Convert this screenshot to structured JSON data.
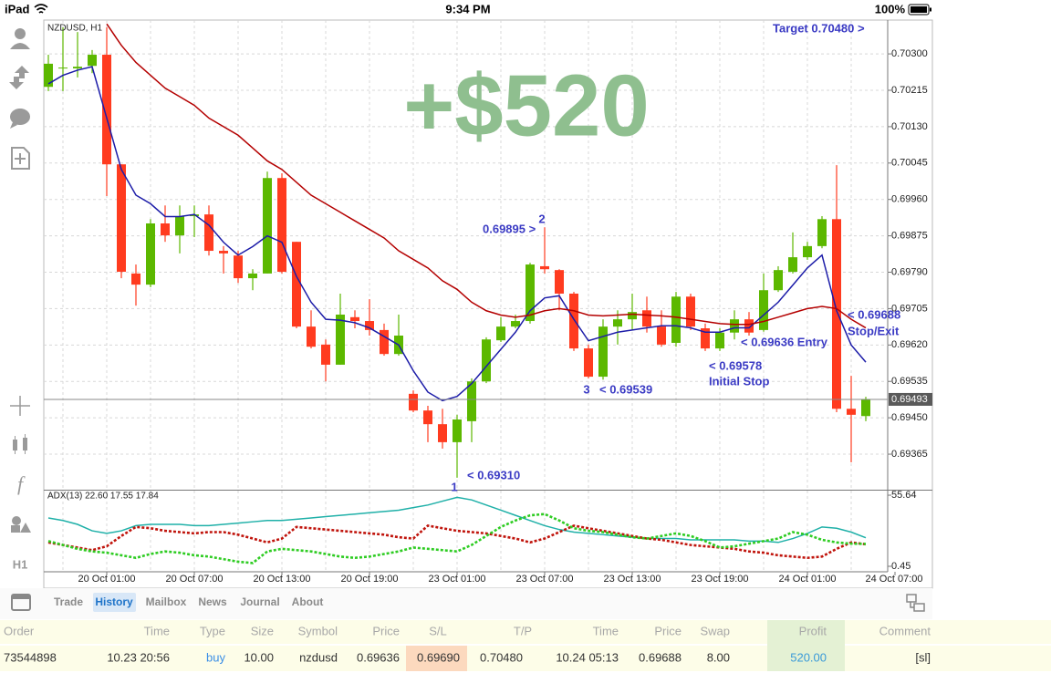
{
  "status_bar": {
    "device": "iPad",
    "time": "9:34 PM",
    "battery": "100%"
  },
  "sidebar": {
    "timeframe": "H1"
  },
  "chart_data": [
    {
      "type": "candlestick",
      "title": "NZDUSD, H1",
      "up_color": "#5cb800",
      "down_color": "#ff3b1f",
      "open": [
        0.70223,
        0.70266,
        0.70266,
        0.70272,
        0.70298,
        0.70042,
        0.69787,
        0.69761,
        0.69904,
        0.69876,
        0.69921,
        0.69925,
        0.6984,
        0.69829,
        0.69776,
        0.69787,
        0.7001,
        0.69861,
        0.69663,
        0.69621,
        0.69574,
        0.69685,
        0.69676,
        0.69655,
        0.69599,
        0.69506,
        0.69467,
        0.69435,
        0.69393,
        0.69442,
        0.69535,
        0.69631,
        0.69663,
        0.69676,
        0.69804,
        0.69795,
        0.6974,
        0.69612,
        0.69546,
        0.69663,
        0.6968,
        0.69701,
        0.69663,
        0.69625,
        0.69733,
        0.69659,
        0.69612,
        0.69649,
        0.6968,
        0.69655,
        0.69748,
        0.69791,
        0.69825,
        0.69851,
        0.69914,
        0.69471,
        0.69454,
        null,
        null
      ],
      "high": [
        0.70298,
        0.70362,
        0.70351,
        0.70309,
        0.70362,
        0.70042,
        0.69808,
        0.69914,
        0.69946,
        0.69946,
        0.69946,
        0.69946,
        0.69851,
        0.6984,
        0.69797,
        0.70025,
        0.70021,
        0.69861,
        0.69701,
        0.69633,
        0.6974,
        0.69701,
        0.69727,
        0.6967,
        0.69691,
        0.69514,
        0.69478,
        0.69471,
        0.69457,
        0.69542,
        0.69638,
        0.69685,
        0.69691,
        0.69812,
        0.69895,
        0.69797,
        0.69744,
        0.69621,
        0.6968,
        0.69701,
        0.6974,
        0.69733,
        0.69701,
        0.69744,
        0.6974,
        0.6967,
        0.69659,
        0.69701,
        0.69697,
        0.69787,
        0.69804,
        0.69883,
        0.69861,
        0.69921,
        0.7004,
        0.69548,
        0.69499,
        null,
        null
      ],
      "low": [
        0.70213,
        0.70213,
        0.70245,
        0.70255,
        0.69968,
        0.69776,
        0.69712,
        0.69755,
        0.69861,
        0.69834,
        0.69872,
        0.69829,
        0.69787,
        0.69765,
        0.69748,
        0.69787,
        0.69787,
        0.69659,
        0.69612,
        0.69535,
        0.69574,
        0.69659,
        0.69642,
        0.69595,
        0.69595,
        0.69463,
        0.69393,
        0.69378,
        0.6931,
        0.69393,
        0.69531,
        0.69627,
        0.69659,
        0.6967,
        0.69787,
        0.69701,
        0.69606,
        0.69542,
        0.69539,
        0.69621,
        0.69655,
        0.69649,
        0.69616,
        0.69616,
        0.69655,
        0.69606,
        0.69606,
        0.69633,
        0.69642,
        0.69651,
        0.69744,
        0.69787,
        0.69819,
        0.69846,
        0.69463,
        0.69346,
        0.69442,
        null,
        null
      ],
      "close": [
        0.70277,
        0.70268,
        0.7027,
        0.70298,
        0.70042,
        0.69791,
        0.69761,
        0.69904,
        0.69876,
        0.69921,
        0.69925,
        0.6984,
        0.69834,
        0.69776,
        0.69787,
        0.7001,
        0.69791,
        0.69663,
        0.69616,
        0.69574,
        0.69691,
        0.69676,
        0.69655,
        0.69599,
        0.69642,
        0.69467,
        0.69435,
        0.69393,
        0.69446,
        0.69535,
        0.69633,
        0.69663,
        0.69676,
        0.69808,
        0.69797,
        0.6974,
        0.69612,
        0.69546,
        0.69663,
        0.6968,
        0.69697,
        0.69663,
        0.69621,
        0.69733,
        0.69663,
        0.69612,
        0.69649,
        0.6968,
        0.69649,
        0.69748,
        0.69795,
        0.69825,
        0.69851,
        0.69914,
        0.69471,
        0.69457,
        0.69493,
        null,
        null
      ],
      "overlays": [
        {
          "color": "#1c1ca8",
          "values": [
            0.7023,
            0.7025,
            0.70262,
            0.7027,
            0.7015,
            0.7003,
            0.6997,
            0.6995,
            0.6992,
            0.6992,
            0.69925,
            0.699,
            0.6986,
            0.6983,
            0.6985,
            0.69875,
            0.6986,
            0.6978,
            0.6972,
            0.6968,
            0.69678,
            0.69672,
            0.6966,
            0.6964,
            0.6962,
            0.6956,
            0.6951,
            0.6949,
            0.695,
            0.6953,
            0.6957,
            0.6961,
            0.6965,
            0.697,
            0.6973,
            0.69735,
            0.6968,
            0.6963,
            0.6964,
            0.6965,
            0.69655,
            0.6966,
            0.69665,
            0.69665,
            0.6966,
            0.6965,
            0.6965,
            0.6966,
            0.6966,
            0.6969,
            0.6972,
            0.6976,
            0.698,
            0.6983,
            0.697,
            0.6962,
            0.6958,
            null,
            null
          ]
        },
        {
          "color": "#b40000",
          "values": [
            null,
            null,
            null,
            null,
            0.7037,
            0.7032,
            0.7028,
            0.7025,
            0.7022,
            0.702,
            0.7018,
            0.7015,
            0.7013,
            0.7011,
            0.7008,
            0.7005,
            0.7003,
            0.7,
            0.6997,
            0.6995,
            0.6993,
            0.6991,
            0.6989,
            0.6987,
            0.6984,
            0.6982,
            0.698,
            0.6977,
            0.6975,
            0.6972,
            0.697,
            0.6969,
            0.69685,
            0.6969,
            0.697,
            0.69705,
            0.697,
            0.6969,
            0.69688,
            0.6969,
            0.69692,
            0.6969,
            0.69688,
            0.69685,
            0.6968,
            0.69675,
            0.6967,
            0.69668,
            0.69668,
            0.69675,
            0.69685,
            0.69695,
            0.69705,
            0.6971,
            0.69705,
            0.6968,
            0.6966,
            null,
            null
          ]
        }
      ],
      "ylim": [
        0.69282,
        0.70379
      ],
      "yticks": [
        {
          "value": 0.703,
          "label": "0.70300"
        },
        {
          "value": 0.70215,
          "label": "0.70215"
        },
        {
          "value": 0.7013,
          "label": "0.70130"
        },
        {
          "value": 0.70045,
          "label": "0.70045"
        },
        {
          "value": 0.6996,
          "label": "0.69960"
        },
        {
          "value": 0.69875,
          "label": "0.69875"
        },
        {
          "value": 0.6979,
          "label": "0.69790"
        },
        {
          "value": 0.69705,
          "label": "0.69705"
        },
        {
          "value": 0.6962,
          "label": "0.69620"
        },
        {
          "value": 0.69535,
          "label": "0.69535"
        },
        {
          "value": 0.6945,
          "label": "0.69450"
        },
        {
          "value": 0.69365,
          "label": "0.69365"
        }
      ],
      "current_price": {
        "value": 0.69493,
        "label": "0.69493"
      },
      "grid": true,
      "profit_banner": "+$520",
      "annotations": [
        "Target 0.70480 >",
        "0.69895 >",
        "2",
        "< 0.69310",
        "1",
        "3",
        "< 0.69539",
        "< 0.69578",
        "Initial Stop",
        "< 0.69636 Entry",
        "< 0.69688",
        "Stop/Exit"
      ]
    },
    {
      "type": "line",
      "title": "ADX(13) 22.60 17.55 17.84",
      "categories": [
        null,
        null,
        null,
        null,
        "20 Oct 01:00",
        null,
        null,
        null,
        null,
        null,
        "20 Oct 07:00",
        null,
        null,
        null,
        null,
        null,
        "20 Oct 13:00",
        null,
        null,
        null,
        null,
        null,
        "20 Oct 19:00",
        null,
        null,
        null,
        null,
        null,
        "23 Oct 01:00",
        null,
        null,
        null,
        null,
        null,
        "23 Oct 07:00",
        null,
        null,
        null,
        null,
        null,
        "23 Oct 13:00",
        null,
        null,
        null,
        null,
        null,
        "23 Oct 19:00",
        null,
        null,
        null,
        null,
        null,
        "24 Oct 01:00",
        null,
        null,
        null,
        null,
        null,
        "24 Oct 07:00"
      ],
      "series": [
        {
          "color": "#1fb0a8",
          "style": "solid",
          "values": [
            38,
            36,
            33,
            28,
            26,
            28,
            32,
            33,
            33,
            33,
            32,
            32,
            33,
            34,
            35,
            36,
            36,
            37,
            38,
            39,
            40,
            41,
            42,
            43,
            44,
            46,
            48,
            51,
            54,
            52,
            48,
            44,
            40,
            36,
            32,
            29,
            27,
            26,
            25,
            24,
            23,
            22,
            22,
            22,
            21,
            21,
            21,
            21,
            20,
            20,
            19,
            22,
            26,
            31,
            30,
            27,
            22.6,
            null,
            null
          ]
        },
        {
          "color": "#c0140c",
          "style": "dotted",
          "values": [
            19,
            17,
            15,
            13,
            16,
            24,
            31,
            30,
            28,
            27,
            26,
            27,
            27,
            25,
            22,
            19,
            22,
            31,
            30,
            29,
            28,
            27,
            26,
            25,
            23,
            22,
            32,
            30,
            28,
            27,
            26,
            24,
            22,
            19,
            22,
            27,
            32,
            30,
            28,
            26,
            24,
            22,
            21,
            19,
            17,
            16,
            15,
            14,
            12,
            11,
            9,
            8,
            7,
            8,
            14,
            19,
            17.55,
            null,
            null
          ]
        },
        {
          "color": "#2ecc22",
          "style": "dotted",
          "values": [
            20,
            17,
            14,
            12,
            11,
            9,
            7,
            10,
            12,
            11,
            9,
            8,
            6,
            4,
            3,
            12,
            14,
            13,
            12,
            10,
            8,
            7,
            8,
            10,
            12,
            15,
            14,
            13,
            12,
            17,
            24,
            31,
            36,
            40,
            41,
            36,
            30,
            28,
            27,
            25,
            23,
            22,
            24,
            26,
            24,
            20,
            15,
            16,
            18,
            20,
            22,
            27,
            25,
            21,
            19,
            18,
            17.84,
            null,
            null
          ]
        }
      ],
      "ylim": [
        -3.8,
        59.2
      ],
      "yticks": [
        55.64,
        0.45
      ]
    }
  ],
  "tabs": [
    "Trade",
    "History",
    "Mailbox",
    "News",
    "Journal",
    "About"
  ],
  "table": {
    "header": [
      "Order",
      "Time",
      "Type",
      "Size",
      "Symbol",
      "Price",
      "S/L",
      "T/P",
      "Time",
      "Price",
      "Swap",
      "Profit",
      "Comment"
    ],
    "rows": [
      [
        "73544898",
        "10.23 20:56",
        "buy",
        "10.00",
        "nzdusd",
        "0.69636",
        "0.69690",
        "0.70480",
        "10.24 05:13",
        "0.69688",
        "8.00",
        "520.00",
        "[sl]"
      ]
    ]
  }
}
